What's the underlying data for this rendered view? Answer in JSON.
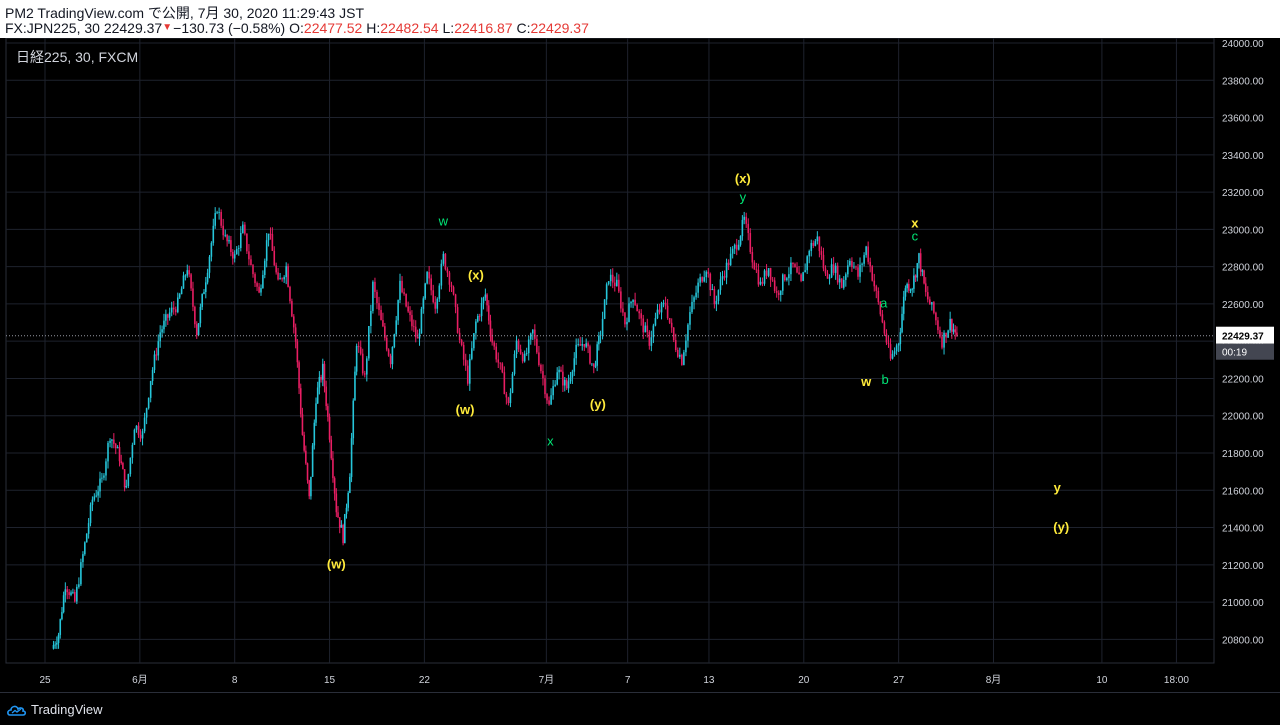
{
  "header": {
    "published_line": "PM2 TradingView.com で公開, 7月 30, 2020 11:29:43 JST",
    "symbol_info": "FX:JPN225, 30 22429.37",
    "change": "−130.73 (−0.58%)",
    "open_label": "O:",
    "open_value": "22477.52",
    "high_label": "H:",
    "high_value": "22482.54",
    "low_label": "L:",
    "low_value": "22416.87",
    "close_label": "C:",
    "close_value": "22429.37"
  },
  "chart_title": "日経225, 30, FXCM",
  "footer": {
    "brand": "TradingView"
  },
  "colors": {
    "up_candle": "#26c6da",
    "down_candle": "#e91e63",
    "wave_yellow": "#ffeb3b",
    "wave_green": "#00e676",
    "axis_bg": "#000000",
    "grid": "#1e222d",
    "price_tag": "#ffffff"
  },
  "chart_data": {
    "type": "candlestick",
    "ylim": [
      20700,
      24000
    ],
    "y_ticks": [
      20800,
      21000,
      21200,
      21400,
      21600,
      21800,
      22000,
      22200,
      22400,
      22600,
      22800,
      23000,
      23200,
      23400,
      23600,
      23800,
      24000
    ],
    "y_tick_labels": [
      "20800.00",
      "21000.00",
      "21200.00",
      "21400.00",
      "21600.00",
      "21800.00",
      "22000.00",
      "22200.00",
      "22400.00",
      "22600.00",
      "22800.00",
      "23000.00",
      "23200.00",
      "23400.00",
      "23600.00",
      "23800.00",
      "24000.00"
    ],
    "x_ticks": [
      {
        "label": "25",
        "day": 0
      },
      {
        "label": "6月",
        "day": 7
      },
      {
        "label": "8",
        "day": 14
      },
      {
        "label": "15",
        "day": 21
      },
      {
        "label": "22",
        "day": 28
      },
      {
        "label": "7月",
        "day": 37
      },
      {
        "label": "7",
        "day": 43
      },
      {
        "label": "13",
        "day": 49
      },
      {
        "label": "20",
        "day": 56
      },
      {
        "label": "27",
        "day": 63
      },
      {
        "label": "8月",
        "day": 70
      },
      {
        "label": "10",
        "day": 78
      },
      {
        "label": "18:00",
        "day": 83.5
      }
    ],
    "last_price": "22429.37",
    "countdown": "00:19",
    "price_path": [
      [
        0.5,
        20750
      ],
      [
        1.0,
        20830
      ],
      [
        1.5,
        21100
      ],
      [
        2.2,
        21000
      ],
      [
        2.8,
        21250
      ],
      [
        3.5,
        21550
      ],
      [
        4.2,
        21650
      ],
      [
        4.8,
        21900
      ],
      [
        5.5,
        21780
      ],
      [
        6.0,
        21600
      ],
      [
        6.6,
        21950
      ],
      [
        7.2,
        21900
      ],
      [
        7.8,
        22200
      ],
      [
        8.5,
        22450
      ],
      [
        9.2,
        22550
      ],
      [
        9.8,
        22600
      ],
      [
        10.5,
        22800
      ],
      [
        11.2,
        22450
      ],
      [
        12.0,
        22800
      ],
      [
        12.7,
        23120
      ],
      [
        13.3,
        22950
      ],
      [
        14.0,
        22850
      ],
      [
        14.6,
        23000
      ],
      [
        15.2,
        22800
      ],
      [
        15.8,
        22650
      ],
      [
        16.5,
        23000
      ],
      [
        17.2,
        22700
      ],
      [
        17.8,
        22800
      ],
      [
        18.5,
        22400
      ],
      [
        19.0,
        21900
      ],
      [
        19.5,
        21550
      ],
      [
        20.0,
        22100
      ],
      [
        20.5,
        22250
      ],
      [
        21.0,
        21900
      ],
      [
        21.5,
        21500
      ],
      [
        22.0,
        21350
      ],
      [
        22.5,
        21700
      ],
      [
        23.0,
        22400
      ],
      [
        23.6,
        22200
      ],
      [
        24.2,
        22700
      ],
      [
        24.8,
        22500
      ],
      [
        25.5,
        22300
      ],
      [
        26.2,
        22700
      ],
      [
        26.8,
        22550
      ],
      [
        27.5,
        22400
      ],
      [
        28.2,
        22750
      ],
      [
        28.8,
        22600
      ],
      [
        29.4,
        22850
      ],
      [
        30.0,
        22700
      ],
      [
        30.6,
        22400
      ],
      [
        31.2,
        22200
      ],
      [
        31.8,
        22500
      ],
      [
        32.5,
        22650
      ],
      [
        33.0,
        22400
      ],
      [
        33.6,
        22250
      ],
      [
        34.2,
        22050
      ],
      [
        34.8,
        22400
      ],
      [
        35.4,
        22300
      ],
      [
        36.0,
        22450
      ],
      [
        36.6,
        22250
      ],
      [
        37.2,
        22050
      ],
      [
        37.8,
        22250
      ],
      [
        38.5,
        22150
      ],
      [
        39.2,
        22350
      ],
      [
        39.8,
        22400
      ],
      [
        40.5,
        22250
      ],
      [
        41.0,
        22450
      ],
      [
        41.6,
        22750
      ],
      [
        42.2,
        22700
      ],
      [
        42.8,
        22500
      ],
      [
        43.4,
        22650
      ],
      [
        44.0,
        22500
      ],
      [
        44.6,
        22400
      ],
      [
        45.2,
        22550
      ],
      [
        45.8,
        22600
      ],
      [
        46.4,
        22400
      ],
      [
        47.0,
        22300
      ],
      [
        47.6,
        22550
      ],
      [
        48.2,
        22700
      ],
      [
        48.8,
        22800
      ],
      [
        49.4,
        22600
      ],
      [
        50.0,
        22750
      ],
      [
        50.6,
        22850
      ],
      [
        51.2,
        22950
      ],
      [
        51.6,
        23050
      ],
      [
        52.2,
        22850
      ],
      [
        52.8,
        22700
      ],
      [
        53.4,
        22800
      ],
      [
        54.0,
        22650
      ],
      [
        54.6,
        22750
      ],
      [
        55.2,
        22800
      ],
      [
        55.8,
        22700
      ],
      [
        56.4,
        22900
      ],
      [
        57.0,
        22950
      ],
      [
        57.6,
        22750
      ],
      [
        58.2,
        22800
      ],
      [
        58.8,
        22700
      ],
      [
        59.4,
        22850
      ],
      [
        60.0,
        22750
      ],
      [
        60.6,
        22900
      ],
      [
        61.2,
        22700
      ],
      [
        61.8,
        22500
      ],
      [
        62.4,
        22300
      ],
      [
        63.0,
        22400
      ],
      [
        63.5,
        22700
      ],
      [
        64.0,
        22700
      ],
      [
        64.5,
        22850
      ],
      [
        65.0,
        22650
      ],
      [
        65.6,
        22550
      ],
      [
        66.2,
        22400
      ],
      [
        66.8,
        22500
      ],
      [
        67.3,
        22429
      ]
    ],
    "wave_labels": [
      {
        "text": "(w)",
        "day": 21.5,
        "price": 21180,
        "color": "yellow"
      },
      {
        "text": "w",
        "day": 29.4,
        "price": 23020,
        "color": "green"
      },
      {
        "text": "(x)",
        "day": 31.8,
        "price": 22730,
        "color": "yellow"
      },
      {
        "text": "(w)",
        "day": 31.0,
        "price": 22010,
        "color": "yellow"
      },
      {
        "text": "x",
        "day": 37.3,
        "price": 21840,
        "color": "green"
      },
      {
        "text": "(y)",
        "day": 40.8,
        "price": 22040,
        "color": "yellow"
      },
      {
        "text": "(x)",
        "day": 51.5,
        "price": 23250,
        "color": "yellow"
      },
      {
        "text": "y",
        "day": 51.5,
        "price": 23150,
        "color": "green"
      },
      {
        "text": "x",
        "day": 64.2,
        "price": 23010,
        "color": "yellow"
      },
      {
        "text": "c",
        "day": 64.2,
        "price": 22940,
        "color": "green"
      },
      {
        "text": "a",
        "day": 61.9,
        "price": 22580,
        "color": "green"
      },
      {
        "text": "w",
        "day": 60.6,
        "price": 22160,
        "color": "yellow"
      },
      {
        "text": "b",
        "day": 62.0,
        "price": 22170,
        "color": "green"
      },
      {
        "text": "y",
        "day": 74.7,
        "price": 21590,
        "color": "yellow"
      },
      {
        "text": "(y)",
        "day": 75.0,
        "price": 21380,
        "color": "yellow"
      }
    ]
  }
}
